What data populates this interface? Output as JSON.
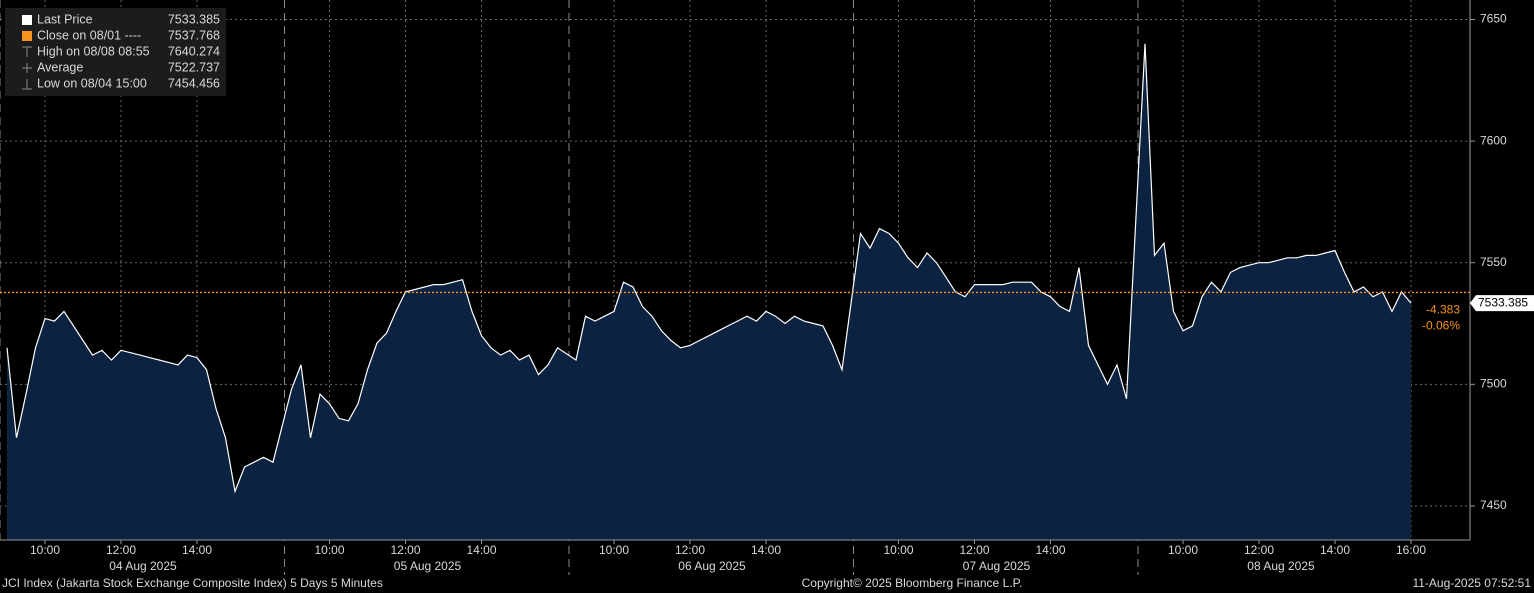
{
  "chart_data": {
    "type": "area",
    "legend": [
      {
        "label": "Last Price",
        "value": 7533.385,
        "color": "#ffffff"
      },
      {
        "label": "Close on 08/01 ----",
        "value": 7537.768,
        "color": "#f7931a"
      },
      {
        "label": "High on 08/08 08:55",
        "value": 7640.274
      },
      {
        "label": "Average",
        "value": 7522.737
      },
      {
        "label": "Low on 08/04 15:00",
        "value": 7454.456
      }
    ],
    "change": -4.383,
    "change_pct": {
      "value": -0.06,
      "label": "-0.06%"
    },
    "line_color": "#ffffff",
    "fill_color": "#0b2240",
    "ylim": [
      7436,
      7658
    ],
    "yticks": [
      7450,
      7500,
      7550,
      7600,
      7650
    ],
    "grid": true,
    "sessions": [
      {
        "date": "04 Aug 2025",
        "categories": [
          null,
          null,
          null,
          null,
          "10:00",
          null,
          null,
          null,
          null,
          null,
          null,
          null,
          "12:00",
          null,
          null,
          null,
          null,
          null,
          null,
          null,
          "14:00",
          null,
          null,
          null,
          null,
          null,
          null,
          null,
          null
        ],
        "values": [
          7515,
          7478,
          7496,
          7515,
          7527,
          7526,
          7530,
          7524,
          7518,
          7512,
          7514,
          7510,
          7514,
          7513,
          7512,
          7511,
          7510,
          7509,
          7508,
          7512,
          7511,
          7506,
          7490,
          7478,
          7456,
          7466,
          7468,
          7470,
          7468
        ]
      },
      {
        "date": "05 Aug 2025",
        "categories": [
          null,
          null,
          null,
          null,
          "10:00",
          null,
          null,
          null,
          null,
          null,
          null,
          null,
          "12:00",
          null,
          null,
          null,
          null,
          null,
          null,
          null,
          "14:00",
          null,
          null,
          null,
          null,
          null,
          null,
          null,
          null
        ],
        "values": [
          7498,
          7508,
          7478,
          7496,
          7492,
          7486,
          7485,
          7492,
          7506,
          7517,
          7521,
          7530,
          7538,
          7539,
          7540,
          7541,
          7541,
          7542,
          7543,
          7530,
          7520,
          7515,
          7512,
          7514,
          7510,
          7512,
          7504,
          7508,
          7515
        ]
      },
      {
        "date": "06 Aug 2025",
        "categories": [
          null,
          null,
          null,
          null,
          "10:00",
          null,
          null,
          null,
          null,
          null,
          null,
          null,
          "12:00",
          null,
          null,
          null,
          null,
          null,
          null,
          null,
          "14:00",
          null,
          null,
          null,
          null,
          null,
          null,
          null,
          null
        ],
        "values": [
          7510,
          7528,
          7526,
          7528,
          7530,
          7542,
          7540,
          7532,
          7528,
          7522,
          7518,
          7515,
          7516,
          7518,
          7520,
          7522,
          7524,
          7526,
          7528,
          7526,
          7530,
          7528,
          7525,
          7528,
          7526,
          7525,
          7524,
          7516,
          7506
        ]
      },
      {
        "date": "07 Aug 2025",
        "categories": [
          null,
          null,
          null,
          null,
          "10:00",
          null,
          null,
          null,
          null,
          null,
          null,
          null,
          "12:00",
          null,
          null,
          null,
          null,
          null,
          null,
          null,
          "14:00",
          null,
          null,
          null,
          null,
          null,
          null,
          null,
          null
        ],
        "values": [
          7562,
          7556,
          7564,
          7562,
          7558,
          7552,
          7548,
          7554,
          7550,
          7544,
          7538,
          7536,
          7541,
          7541,
          7541,
          7541,
          7542,
          7542,
          7542,
          7538,
          7536,
          7532,
          7530,
          7548,
          7516,
          7508,
          7500,
          7508,
          7494
        ]
      },
      {
        "date": "08 Aug 2025",
        "categories": [
          null,
          null,
          null,
          null,
          "10:00",
          null,
          null,
          null,
          null,
          null,
          null,
          null,
          "12:00",
          null,
          null,
          null,
          null,
          null,
          null,
          null,
          "14:00",
          null,
          null,
          null,
          null,
          null,
          null,
          null,
          "16:00"
        ],
        "values": [
          7640,
          7553,
          7558,
          7530,
          7522,
          7524,
          7536,
          7542,
          7538,
          7546,
          7548,
          7549,
          7550,
          7550,
          7551,
          7552,
          7552,
          7553,
          7553,
          7554,
          7555,
          7546,
          7538,
          7540,
          7536,
          7538,
          7530,
          7538,
          7533.385
        ]
      }
    ],
    "footer": {
      "left": "JCI Index (Jakarta Stock Exchange Composite Index) 5 Days 5 Minutes",
      "center": "Copyright© 2025 Bloomberg Finance L.P.",
      "right": "11-Aug-2025 07:52:51"
    }
  }
}
